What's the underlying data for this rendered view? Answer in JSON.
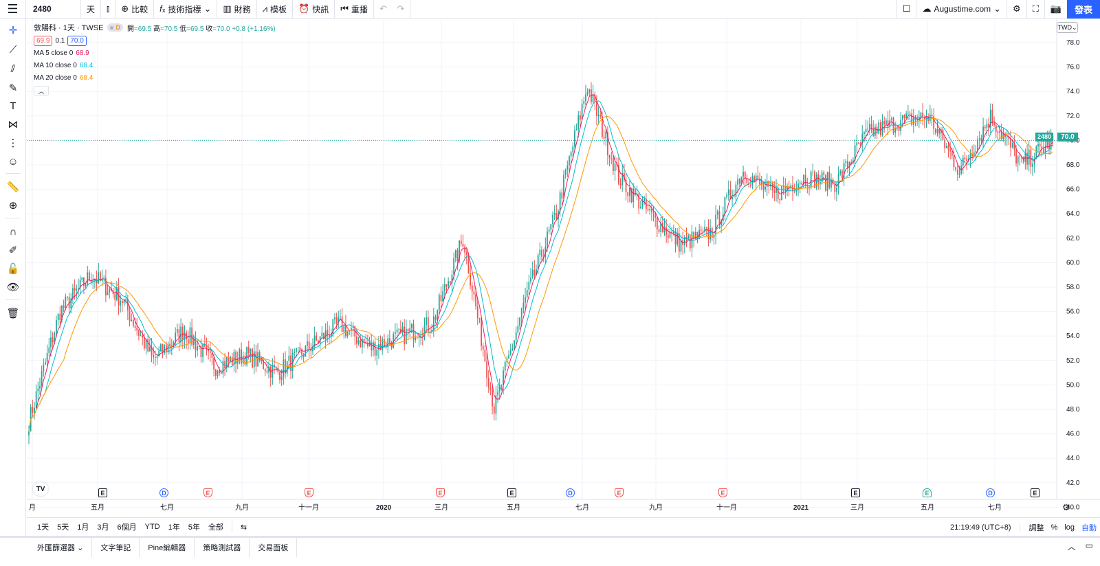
{
  "toolbar": {
    "symbol": "2480",
    "interval": "天",
    "compare": "比較",
    "indicators": "技術指標",
    "financials": "財務",
    "templates": "模板",
    "alerts": "快訊",
    "replay": "重播",
    "account": "Augustime.com",
    "publish": "發表"
  },
  "legend": {
    "title": "敦陽科 · 1天 · TWSE",
    "status_badge": "D",
    "open_label": "開",
    "open": "=69.5",
    "high_label": "高",
    "high": "=70.5",
    "low_label": "低",
    "low": "=69.5",
    "close_label": "收",
    "close": "=70.0",
    "change": "+0.8 (+1.16%)",
    "bid": "69.9",
    "spread": "0.1",
    "ask": "70.0",
    "ma": [
      {
        "label": "MA 5 close 0",
        "value": "68.9",
        "color": "#e91e63"
      },
      {
        "label": "MA 10 close 0",
        "value": "68.4",
        "color": "#00bcd4"
      },
      {
        "label": "MA 20 close 0",
        "value": "68.4",
        "color": "#ff9800"
      }
    ]
  },
  "price_axis": {
    "currency": "TWD",
    "ticks": [
      "78.0",
      "76.0",
      "74.0",
      "72.0",
      "70.0",
      "68.0",
      "66.0",
      "64.0",
      "62.0",
      "60.0",
      "58.0",
      "56.0",
      "54.0",
      "52.0",
      "50.0",
      "48.0",
      "46.0",
      "44.0",
      "42.0",
      "40.0"
    ],
    "last_symbol": "2480",
    "last_price": "70.0"
  },
  "time_axis": {
    "labels": [
      "月",
      "五月",
      "七月",
      "九月",
      "十一月",
      "2020",
      "三月",
      "五月",
      "七月",
      "九月",
      "十一月",
      "2021",
      "三月",
      "五月",
      "七月"
    ]
  },
  "events": [
    "E",
    "D",
    "E",
    "E",
    "E",
    "E",
    "D",
    "E",
    "E",
    "E",
    "E",
    "D",
    "E"
  ],
  "range_bar": {
    "ranges": [
      "1天",
      "5天",
      "1月",
      "3月",
      "6個月",
      "YTD",
      "1年",
      "5年",
      "全部"
    ],
    "clock": "21:19:49 (UTC+8)",
    "adjust": "調整",
    "percent": "%",
    "log": "log",
    "auto": "自動"
  },
  "bottom_tabs": [
    "外匯篩選器",
    "文字筆記",
    "Pine編輯器",
    "策略測試器",
    "交易面板"
  ],
  "colors": {
    "up": "#26a69a",
    "down": "#ef5350",
    "accent": "#2962ff"
  },
  "chart_data": {
    "type": "candlestick",
    "title": "",
    "ylim": [
      40,
      78
    ],
    "xlabel": "",
    "ylabel": "",
    "price_line": 70.0,
    "close_path": [
      [
        "2019-01",
        47.0
      ],
      [
        "2019-02",
        56.0
      ],
      [
        "2019-03",
        59.0
      ],
      [
        "2019-04",
        57.0
      ],
      [
        "2019-05",
        52.0
      ],
      [
        "2019-06",
        54.5
      ],
      [
        "2019-07",
        51.5
      ],
      [
        "2019-08",
        52.5
      ],
      [
        "2019-09",
        51.0
      ],
      [
        "2019-10",
        53.0
      ],
      [
        "2019-11",
        55.0
      ],
      [
        "2019-12",
        53.0
      ],
      [
        "2020-01",
        54.0
      ],
      [
        "2020-02",
        55.0
      ],
      [
        "2020-03a",
        62.0
      ],
      [
        "2020-03b",
        48.0
      ],
      [
        "2020-04",
        57.0
      ],
      [
        "2020-05",
        64.0
      ],
      [
        "2020-06",
        74.5
      ],
      [
        "2020-07",
        67.0
      ],
      [
        "2020-08",
        64.0
      ],
      [
        "2020-09",
        61.5
      ],
      [
        "2020-10",
        62.5
      ],
      [
        "2020-11",
        67.5
      ],
      [
        "2020-12",
        65.5
      ],
      [
        "2021-01",
        67.0
      ],
      [
        "2021-02",
        66.5
      ],
      [
        "2021-03",
        70.5
      ],
      [
        "2021-04",
        71.5
      ],
      [
        "2021-05a",
        72.0
      ],
      [
        "2021-05b",
        67.5
      ],
      [
        "2021-06",
        72.0
      ],
      [
        "2021-07",
        68.0
      ],
      [
        "2021-08",
        70.0
      ]
    ]
  }
}
